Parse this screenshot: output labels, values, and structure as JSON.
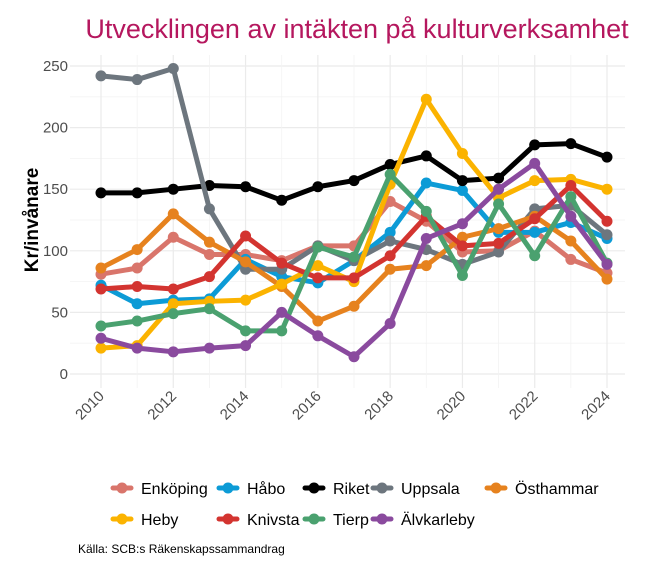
{
  "chart_data": {
    "type": "line",
    "title": "Utvecklingen av intäkten på kulturverksamhet",
    "xlabel": "",
    "ylabel": "Kr/invånare",
    "caption": "Källa: SCB:s Räkenskapssammandrag",
    "x": [
      2010,
      2011,
      2012,
      2013,
      2014,
      2015,
      2016,
      2017,
      2018,
      2019,
      2020,
      2021,
      2022,
      2023,
      2024
    ],
    "xticks": [
      "2010",
      "2012",
      "2014",
      "2016",
      "2018",
      "2020",
      "2022",
      "2024"
    ],
    "yticks": [
      "0",
      "50",
      "100",
      "150",
      "200",
      "250"
    ],
    "xlim": [
      2009.1,
      2024.7
    ],
    "ylim": [
      -5,
      255
    ],
    "grid": true,
    "legend_position": "bottom",
    "series": [
      {
        "name": "Enköping",
        "color": "#d9756b",
        "values": [
          81,
          86,
          111,
          97,
          97,
          92,
          104,
          104,
          140,
          124,
          99,
          100,
          116,
          93,
          82
        ]
      },
      {
        "name": "Håbo",
        "color": "#0c9bd6",
        "values": [
          72,
          57,
          60,
          61,
          93,
          79,
          74,
          92,
          115,
          155,
          149,
          115,
          115,
          123,
          110
        ]
      },
      {
        "name": "Riket",
        "color": "#000000",
        "values": [
          147,
          147,
          150,
          153,
          152,
          141,
          152,
          157,
          170,
          177,
          157,
          159,
          186,
          187,
          176
        ]
      },
      {
        "name": "Uppsala",
        "color": "#6d767e",
        "values": [
          242,
          239,
          248,
          134,
          85,
          85,
          104,
          92,
          108,
          101,
          89,
          99,
          134,
          137,
          113
        ]
      },
      {
        "name": "Östhammar",
        "color": "#e6821e",
        "values": [
          86,
          101,
          130,
          107,
          91,
          71,
          43,
          55,
          85,
          88,
          111,
          118,
          128,
          108,
          77
        ]
      },
      {
        "name": "Heby",
        "color": "#fbb300",
        "values": [
          21,
          23,
          57,
          59,
          60,
          73,
          88,
          75,
          154,
          223,
          179,
          143,
          157,
          158,
          150
        ]
      },
      {
        "name": "Knivsta",
        "color": "#d33430",
        "values": [
          69,
          71,
          69,
          79,
          112,
          90,
          78,
          78,
          96,
          128,
          104,
          106,
          126,
          153,
          124
        ]
      },
      {
        "name": "Tierp",
        "color": "#4aa16f",
        "values": [
          39,
          43,
          49,
          53,
          35,
          35,
          103,
          95,
          162,
          132,
          80,
          138,
          96,
          144,
          90
        ]
      },
      {
        "name": "Älvkarleby",
        "color": "#8a4a9e",
        "values": [
          29,
          21,
          18,
          21,
          23,
          50,
          31,
          14,
          41,
          110,
          122,
          150,
          171,
          128,
          89
        ]
      }
    ]
  }
}
